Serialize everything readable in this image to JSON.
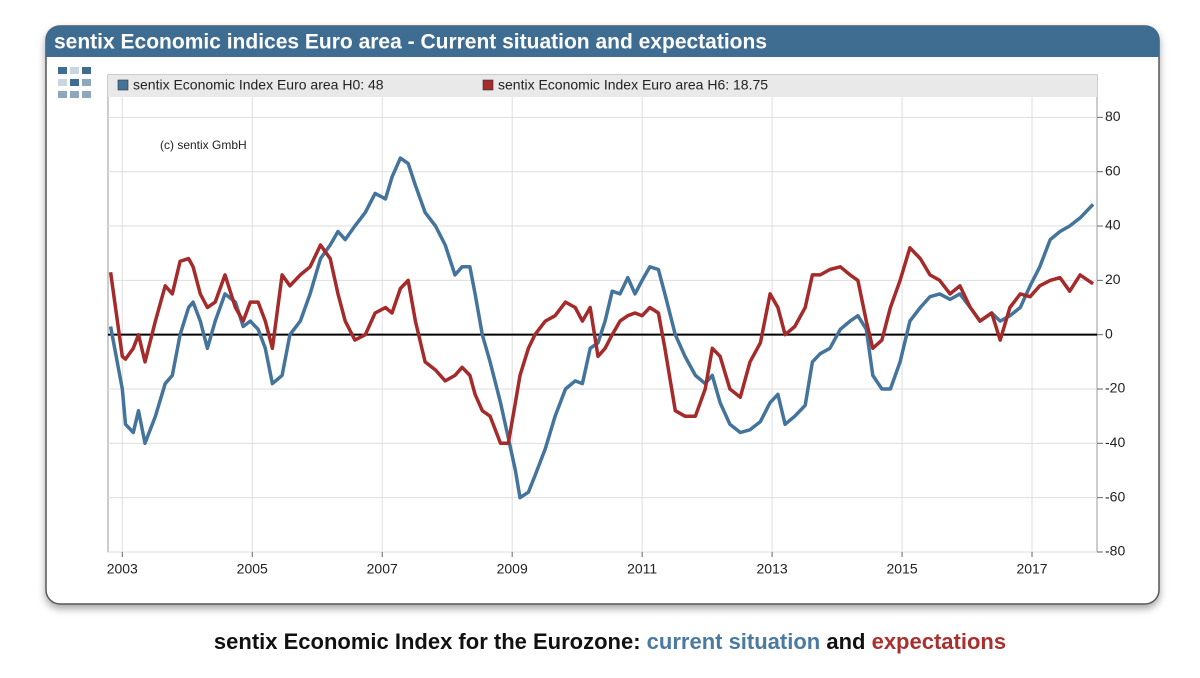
{
  "chart_data": {
    "type": "line",
    "title": "sentix Economic indices Euro area - Current situation and expectations",
    "annotation": "(c) sentix GmbH",
    "caption": [
      {
        "text": "sentix Economic Index for the Eurozone: ",
        "color": "#111111"
      },
      {
        "text": "current situation",
        "color": "#4a7aa0"
      },
      {
        "text": " and ",
        "color": "#111111"
      },
      {
        "text": "expectations",
        "color": "#a8302e"
      }
    ],
    "x": [
      2002.82,
      2003.0,
      2003.05,
      2003.17,
      2003.25,
      2003.35,
      2003.51,
      2003.66,
      2003.77,
      2003.89,
      2004.02,
      2004.09,
      2004.2,
      2004.31,
      2004.43,
      2004.58,
      2004.74,
      2004.86,
      2004.97,
      2005.09,
      2005.2,
      2005.31,
      2005.46,
      2005.58,
      2005.74,
      2005.89,
      2006.05,
      2006.2,
      2006.32,
      2006.43,
      2006.58,
      2006.74,
      2006.89,
      2007.05,
      2007.15,
      2007.28,
      2007.4,
      2007.51,
      2007.66,
      2007.82,
      2007.97,
      2008.12,
      2008.23,
      2008.35,
      2008.43,
      2008.54,
      2008.66,
      2008.82,
      2008.94,
      2009.05,
      2009.12,
      2009.25,
      2009.35,
      2009.51,
      2009.66,
      2009.82,
      2009.97,
      2010.08,
      2010.2,
      2010.32,
      2010.43,
      2010.54,
      2010.66,
      2010.78,
      2010.89,
      2011.0,
      2011.12,
      2011.25,
      2011.35,
      2011.51,
      2011.66,
      2011.82,
      2011.97,
      2012.08,
      2012.2,
      2012.35,
      2012.51,
      2012.66,
      2012.82,
      2012.97,
      2013.09,
      2013.2,
      2013.35,
      2013.51,
      2013.62,
      2013.74,
      2013.89,
      2014.05,
      2014.2,
      2014.32,
      2014.45,
      2014.55,
      2014.69,
      2014.82,
      2014.97,
      2015.12,
      2015.28,
      2015.43,
      2015.58,
      2015.74,
      2015.89,
      2016.05,
      2016.2,
      2016.38,
      2016.51,
      2016.66,
      2016.82,
      2016.97,
      2017.12,
      2017.28,
      2017.43,
      2017.58,
      2017.74,
      2017.94
    ],
    "series": [
      {
        "name": "sentix Economic Index Euro area H0: 48",
        "color": "#44749c",
        "values": [
          3,
          -20,
          -33,
          -36,
          -28,
          -40,
          -30,
          -18,
          -15,
          0,
          10,
          12,
          5,
          -5,
          5,
          15,
          12,
          3,
          5,
          2,
          -5,
          -18,
          -15,
          0,
          5,
          15,
          28,
          33,
          38,
          35,
          40,
          45,
          52,
          50,
          58,
          65,
          63,
          55,
          45,
          40,
          33,
          22,
          25,
          25,
          15,
          0,
          -10,
          -25,
          -38,
          -50,
          -60,
          -58,
          -52,
          -42,
          -30,
          -20,
          -17,
          -18,
          -5,
          -3,
          5,
          16,
          15,
          21,
          15,
          20,
          25,
          24,
          15,
          0,
          -8,
          -15,
          -18,
          -15,
          -25,
          -33,
          -36,
          -35,
          -32,
          -25,
          -22,
          -33,
          -30,
          -26,
          -10,
          -7,
          -5,
          2,
          5,
          7,
          2,
          -15,
          -20,
          -20,
          -10,
          5,
          10,
          14,
          15,
          13,
          15,
          10,
          5,
          8,
          5,
          7,
          10,
          18,
          25,
          35,
          38,
          40,
          43,
          48
        ]
      },
      {
        "name": "sentix Economic Index Euro area H6: 18.75",
        "color": "#a52b2b",
        "values": [
          23,
          -8,
          -9,
          -5,
          0,
          -10,
          5,
          18,
          15,
          27,
          28,
          25,
          15,
          10,
          12,
          22,
          10,
          5,
          12,
          12,
          5,
          -5,
          22,
          18,
          22,
          25,
          33,
          28,
          15,
          5,
          -2,
          0,
          8,
          10,
          8,
          17,
          20,
          5,
          -10,
          -13,
          -17,
          -15,
          -12,
          -15,
          -22,
          -28,
          -30,
          -40,
          -40,
          -25,
          -15,
          -5,
          0,
          5,
          7,
          12,
          10,
          5,
          10,
          -8,
          -5,
          0,
          5,
          7,
          8,
          7,
          10,
          8,
          -5,
          -28,
          -30,
          -30,
          -20,
          -5,
          -8,
          -20,
          -23,
          -10,
          -3,
          15,
          10,
          0,
          3,
          10,
          22,
          22,
          24,
          25,
          22,
          20,
          5,
          -5,
          -2,
          10,
          20,
          32,
          28,
          22,
          20,
          15,
          18,
          10,
          5,
          8,
          -2,
          10,
          15,
          14,
          18,
          20,
          21,
          16,
          22,
          18.75
        ]
      }
    ],
    "hline": 0,
    "xlim": [
      2002.78,
      2018.0
    ],
    "xticks": [
      2003,
      2005,
      2007,
      2009,
      2011,
      2013,
      2015,
      2017
    ],
    "ylim": [
      -80,
      87.5
    ],
    "yticks": [
      -80,
      -60,
      -40,
      -20,
      0,
      20,
      40,
      60,
      80
    ],
    "grid": true,
    "legend": "top"
  }
}
